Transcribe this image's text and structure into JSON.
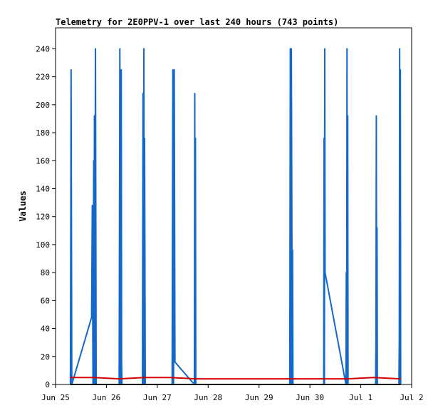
{
  "chart_data": {
    "type": "line",
    "title": "Telemetry for 2E0PPV-1 over last 240 hours (743 points)",
    "xlabel": "",
    "ylabel": "Values",
    "ylim": [
      0,
      255
    ],
    "xlim": [
      "Jun 25 00:00",
      "Jul 2 00:00"
    ],
    "y_ticks": [
      0,
      20,
      40,
      60,
      80,
      100,
      120,
      140,
      160,
      180,
      200,
      220,
      240
    ],
    "x_ticks": [
      "Jun 25",
      "Jun 26",
      "Jun 27",
      "Jun 28",
      "Jun 29",
      "Jun 30",
      "Jul 1",
      "Jul 2"
    ],
    "grid": false,
    "legend": "none",
    "colors": {
      "series_main": "#1469c8",
      "series_low": "#d00000",
      "series_zero": "#000000",
      "axes": "#000000"
    },
    "series": [
      {
        "color": "#1469c8",
        "points": [
          [
            "Jun 25 07:00",
            0
          ],
          [
            "Jun 25 07:20",
            225
          ],
          [
            "Jun 25 07:40",
            0
          ],
          [
            "Jun 25 17:00",
            48
          ],
          [
            "Jun 25 17:20",
            128
          ],
          [
            "Jun 25 17:40",
            0
          ],
          [
            "Jun 25 18:00",
            160
          ],
          [
            "Jun 25 18:10",
            0
          ],
          [
            "Jun 25 18:20",
            192
          ],
          [
            "Jun 25 18:30",
            0
          ],
          [
            "Jun 25 18:50",
            240
          ],
          [
            "Jun 25 19:10",
            0
          ],
          [
            "Jun 26 06:00",
            0
          ],
          [
            "Jun 26 06:20",
            240
          ],
          [
            "Jun 26 06:40",
            0
          ],
          [
            "Jun 26 07:00",
            225
          ],
          [
            "Jun 26 07:10",
            16
          ],
          [
            "Jun 26 07:20",
            0
          ],
          [
            "Jun 26 17:00",
            0
          ],
          [
            "Jun 26 17:15",
            208
          ],
          [
            "Jun 26 17:30",
            0
          ],
          [
            "Jun 26 17:40",
            240
          ],
          [
            "Jun 26 17:50",
            0
          ],
          [
            "Jun 26 18:00",
            176
          ],
          [
            "Jun 26 18:20",
            0
          ],
          [
            "Jun 27 07:00",
            0
          ],
          [
            "Jun 27 07:20",
            225
          ],
          [
            "Jun 27 07:40",
            0
          ],
          [
            "Jun 27 08:00",
            225
          ],
          [
            "Jun 27 08:20",
            16
          ],
          [
            "Jun 27 17:30",
            0
          ],
          [
            "Jun 27 17:40",
            208
          ],
          [
            "Jun 27 17:50",
            0
          ],
          [
            "Jun 27 18:00",
            176
          ],
          [
            "Jun 27 18:10",
            0
          ],
          [
            "Jun 29 14:30",
            0
          ],
          [
            "Jun 29 14:45",
            240
          ],
          [
            "Jun 29 15:00",
            0
          ],
          [
            "Jun 29 15:15",
            240
          ],
          [
            "Jun 29 15:30",
            112
          ],
          [
            "Jun 29 15:40",
            0
          ],
          [
            "Jun 29 15:50",
            96
          ],
          [
            "Jun 29 16:00",
            0
          ],
          [
            "Jun 30 06:30",
            0
          ],
          [
            "Jun 30 06:40",
            176
          ],
          [
            "Jun 30 06:50",
            0
          ],
          [
            "Jun 30 07:00",
            240
          ],
          [
            "Jun 30 07:10",
            80
          ],
          [
            "Jun 30 17:00",
            0
          ],
          [
            "Jun 30 17:10",
            80
          ],
          [
            "Jun 30 17:20",
            0
          ],
          [
            "Jun 30 17:30",
            240
          ],
          [
            "Jun 30 17:40",
            0
          ],
          [
            "Jun 30 17:50",
            192
          ],
          [
            "Jun 30 18:00",
            0
          ],
          [
            "Jul 1 07:00",
            0
          ],
          [
            "Jul 1 07:10",
            32
          ],
          [
            "Jul 1 07:20",
            192
          ],
          [
            "Jul 1 07:30",
            0
          ],
          [
            "Jul 1 07:40",
            112
          ],
          [
            "Jul 1 07:50",
            0
          ],
          [
            "Jul 1 18:00",
            0
          ],
          [
            "Jul 1 18:10",
            32
          ],
          [
            "Jul 1 18:20",
            240
          ],
          [
            "Jul 1 18:30",
            0
          ],
          [
            "Jul 1 18:40",
            225
          ],
          [
            "Jul 1 18:50",
            0
          ]
        ]
      },
      {
        "color": "#d00000",
        "points": [
          [
            "Jun 25 07:00",
            5
          ],
          [
            "Jun 25 18:00",
            5
          ],
          [
            "Jun 26 06:00",
            4
          ],
          [
            "Jun 26 18:00",
            5
          ],
          [
            "Jun 27 06:00",
            5
          ],
          [
            "Jun 27 18:00",
            4
          ],
          [
            "Jun 28 12:00",
            4
          ],
          [
            "Jun 29 12:00",
            4
          ],
          [
            "Jun 30 06:00",
            4
          ],
          [
            "Jun 30 18:00",
            4
          ],
          [
            "Jul 1 06:00",
            5
          ],
          [
            "Jul 1 18:40",
            4
          ]
        ]
      },
      {
        "color": "#000000",
        "points": [
          [
            "Jun 25 07:00",
            0
          ],
          [
            "Jul 1 18:50",
            0
          ]
        ]
      }
    ]
  }
}
